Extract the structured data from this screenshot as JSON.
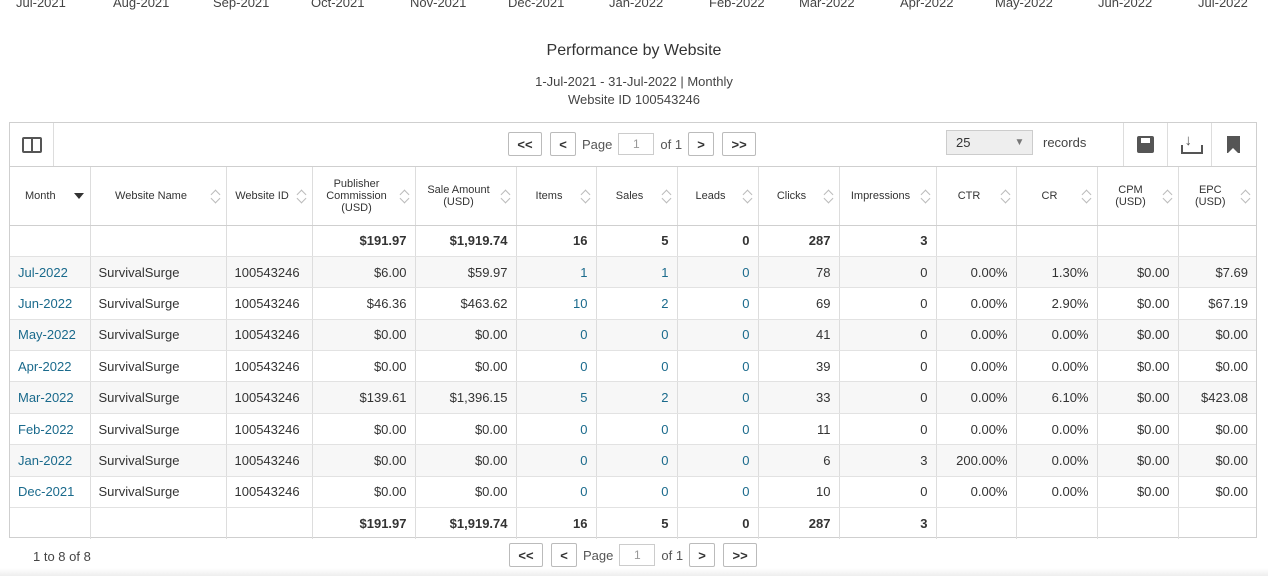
{
  "months_strip": [
    "Jul-2021",
    "Aug-2021",
    "Sep-2021",
    "Oct-2021",
    "Nov-2021",
    "Dec-2021",
    "Jan-2022",
    "Feb-2022",
    "Mar-2022",
    "Apr-2022",
    "May-2022",
    "Jun-2022",
    "Jul-2022"
  ],
  "report": {
    "title": "Performance by Website",
    "date_range": "1-Jul-2021 - 31-Jul-2022 | Monthly",
    "website_line": "Website ID 100543246"
  },
  "pager": {
    "first": "<<",
    "prev": "<",
    "page_label": "Page",
    "page_value": "1",
    "of_label": "of",
    "total_pages": "1",
    "next": ">",
    "last": ">>"
  },
  "records": {
    "value": "25",
    "label": "records"
  },
  "icons": {
    "column_toggle": "columns-icon",
    "save": "save-icon",
    "download": "download-icon",
    "bookmark": "bookmark-icon"
  },
  "columns": [
    "Month",
    "Website Name",
    "Website ID",
    "Publisher Commission (USD)",
    "Sale Amount (USD)",
    "Items",
    "Sales",
    "Leads",
    "Clicks",
    "Impressions",
    "CTR",
    "CR",
    "CPM (USD)",
    "EPC (USD)"
  ],
  "totals_top": [
    "",
    "",
    "",
    "$191.97",
    "$1,919.74",
    "16",
    "5",
    "0",
    "287",
    "3",
    "",
    "",
    "",
    ""
  ],
  "rows": [
    [
      "Jul-2022",
      "SurvivalSurge",
      "100543246",
      "$6.00",
      "$59.97",
      "1",
      "1",
      "0",
      "78",
      "0",
      "0.00%",
      "1.30%",
      "$0.00",
      "$7.69"
    ],
    [
      "Jun-2022",
      "SurvivalSurge",
      "100543246",
      "$46.36",
      "$463.62",
      "10",
      "2",
      "0",
      "69",
      "0",
      "0.00%",
      "2.90%",
      "$0.00",
      "$67.19"
    ],
    [
      "May-2022",
      "SurvivalSurge",
      "100543246",
      "$0.00",
      "$0.00",
      "0",
      "0",
      "0",
      "41",
      "0",
      "0.00%",
      "0.00%",
      "$0.00",
      "$0.00"
    ],
    [
      "Apr-2022",
      "SurvivalSurge",
      "100543246",
      "$0.00",
      "$0.00",
      "0",
      "0",
      "0",
      "39",
      "0",
      "0.00%",
      "0.00%",
      "$0.00",
      "$0.00"
    ],
    [
      "Mar-2022",
      "SurvivalSurge",
      "100543246",
      "$139.61",
      "$1,396.15",
      "5",
      "2",
      "0",
      "33",
      "0",
      "0.00%",
      "6.10%",
      "$0.00",
      "$423.08"
    ],
    [
      "Feb-2022",
      "SurvivalSurge",
      "100543246",
      "$0.00",
      "$0.00",
      "0",
      "0",
      "0",
      "11",
      "0",
      "0.00%",
      "0.00%",
      "$0.00",
      "$0.00"
    ],
    [
      "Jan-2022",
      "SurvivalSurge",
      "100543246",
      "$0.00",
      "$0.00",
      "0",
      "0",
      "0",
      "6",
      "3",
      "200.00%",
      "0.00%",
      "$0.00",
      "$0.00"
    ],
    [
      "Dec-2021",
      "SurvivalSurge",
      "100543246",
      "$0.00",
      "$0.00",
      "0",
      "0",
      "0",
      "10",
      "0",
      "0.00%",
      "0.00%",
      "$0.00",
      "$0.00"
    ]
  ],
  "totals_bottom": [
    "",
    "",
    "",
    "$191.97",
    "$1,919.74",
    "16",
    "5",
    "0",
    "287",
    "3",
    "",
    "",
    "",
    ""
  ],
  "footer": {
    "count": "1 to 8 of 8"
  },
  "colors": {
    "link": "#1a6a8c",
    "border": "#cfcfcf",
    "alt_row": "#f7f7f7"
  }
}
